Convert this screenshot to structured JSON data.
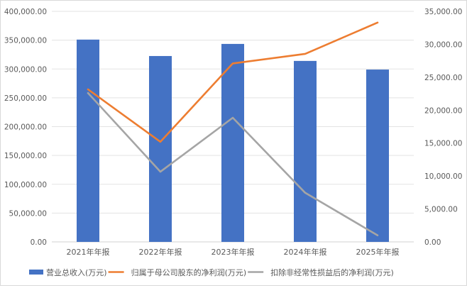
{
  "chart_data": {
    "type": "bar+line",
    "title": "",
    "categories": [
      "2021年年报",
      "2022年年报",
      "2023年年报",
      "2024年年报",
      "2025年年报"
    ],
    "series": [
      {
        "name": "营业总收入(万元)",
        "type": "bar",
        "axis": "left",
        "color": "#4472C4",
        "values": [
          351000,
          322500,
          343500,
          314000,
          299000
        ]
      },
      {
        "name": "归属于母公司股东的净利润(万元)",
        "type": "line",
        "axis": "right",
        "color": "#ED7D31",
        "values": [
          23150,
          15200,
          27100,
          28550,
          33300
        ]
      },
      {
        "name": "扣除非经常性损益后的净利润(万元)",
        "type": "line",
        "axis": "right",
        "color": "#A5A5A5",
        "values": [
          22600,
          10650,
          18850,
          7450,
          1000
        ]
      }
    ],
    "left_axis": {
      "min": 0,
      "max": 400000,
      "step": 50000,
      "tick_labels": [
        "0.00",
        "50,000.00",
        "100,000.00",
        "150,000.00",
        "200,000.00",
        "250,000.00",
        "300,000.00",
        "350,000.00",
        "400,000.00"
      ]
    },
    "right_axis": {
      "min": 0,
      "max": 35000,
      "step": 5000,
      "tick_labels": [
        "0.00",
        "5,000.00",
        "10,000.00",
        "15,000.00",
        "20,000.00",
        "25,000.00",
        "30,000.00",
        "35,000.00"
      ]
    },
    "xlabel": "",
    "ylabel": "",
    "grid": true,
    "legend_position": "bottom"
  }
}
